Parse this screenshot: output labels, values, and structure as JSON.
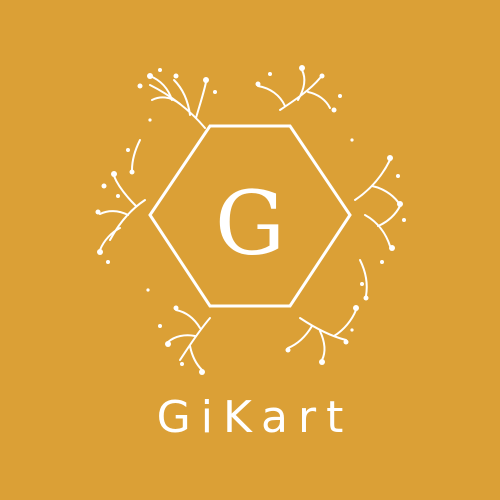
{
  "brand": {
    "name": "GiKart",
    "monogram": "G",
    "background_color": "#dba036",
    "foreground_color": "#ffffff",
    "emblem": "hexagon-frame-with-floral-branches"
  }
}
